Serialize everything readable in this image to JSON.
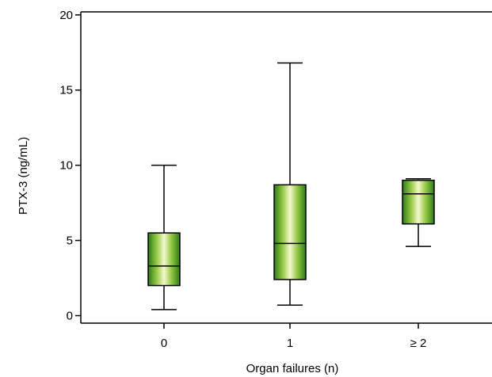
{
  "chart_data": {
    "type": "box",
    "title": "",
    "xlabel": "Organ failures (n)",
    "ylabel": "PTX-3 (ng/mL)",
    "ylim": [
      -0.5,
      20.2
    ],
    "yticks": [
      0,
      5,
      10,
      15,
      20
    ],
    "ytick_labels": [
      "0",
      "5",
      "10",
      "15",
      "20"
    ],
    "categories": [
      "0",
      "1",
      "≥ 2"
    ],
    "boxes": [
      {
        "category": "0",
        "whisker_low": 0.4,
        "q1": 2.0,
        "median": 3.3,
        "q3": 5.5,
        "whisker_high": 10.0
      },
      {
        "category": "1",
        "whisker_low": 0.7,
        "q1": 2.4,
        "median": 4.8,
        "q3": 8.7,
        "whisker_high": 16.8
      },
      {
        "category": "≥ 2",
        "whisker_low": 4.6,
        "q1": 6.1,
        "median": 8.1,
        "q3": 9.0,
        "whisker_high": 9.1
      }
    ],
    "grid": false,
    "legend": "none",
    "colors": {
      "box_dark": "#2f7a1c",
      "box_mid": "#8cc43c",
      "box_light": "#f4f8cc",
      "line": "#000000"
    }
  }
}
